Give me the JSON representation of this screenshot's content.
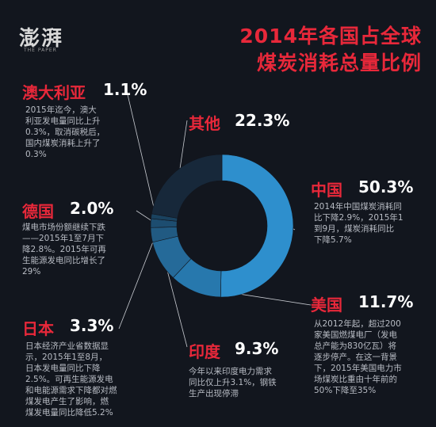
{
  "logo": {
    "text": "澎湃",
    "sub": "THE PAPER"
  },
  "title_line1": "2014年各国占全球",
  "title_line2": "煤炭消耗总量比例",
  "colors": {
    "china": "#2e8fcd",
    "usa": "#2778ad",
    "india": "#256a99",
    "japan": "#215a82",
    "germany": "#1d4d70",
    "australia": "#1a425f",
    "other": "#17283a",
    "accent": "#e8283a"
  },
  "chart_data": {
    "type": "pie",
    "donut": true,
    "title": "2014年各国占全球煤炭消耗总量比例",
    "categories": [
      "中国",
      "美国",
      "印度",
      "日本",
      "德国",
      "澳大利亚",
      "其他"
    ],
    "values": [
      50.3,
      11.7,
      9.3,
      3.3,
      2.0,
      1.1,
      22.3
    ]
  },
  "labels": {
    "china": {
      "name": "中国",
      "pct": "50.3%",
      "desc": [
        "2014年中国煤炭消耗同",
        "比下降2.9%，2015年1",
        "到9月，煤炭消耗同比",
        "下降5.7%"
      ]
    },
    "usa": {
      "name": "美国",
      "pct": "11.7%",
      "desc": [
        "从2012年起，超过200",
        "家美国燃煤电厂（发电",
        "总产能为830亿瓦）将",
        "逐步停产。在这一背景",
        "下，2015年美国电力市",
        "场煤炭比重由十年前的",
        "50%下降至35%"
      ]
    },
    "india": {
      "name": "印度",
      "pct": "9.3%",
      "desc": [
        "今年以来印度电力需求",
        "同比仅上升3.1%，钢铁",
        "生产出现停滞"
      ]
    },
    "japan": {
      "name": "日本",
      "pct": "3.3%",
      "desc": [
        "日本经济产业省数据显",
        "示，2015年1至8月，",
        "日本发电量同比下降",
        "2.5%。可再生能源发电",
        "和电能源需求下降都对燃",
        "煤发电产生了影响，燃",
        "煤发电量同比降低5.2%"
      ]
    },
    "germany": {
      "name": "德国",
      "pct": "2.0%",
      "desc": [
        "煤电市场份额继续下跌",
        "——2015年1至7月下",
        "降2.8%。2015年可再",
        "生能源发电同比增长了",
        "29%"
      ]
    },
    "australia": {
      "name": "澳大利亚",
      "pct": "1.1%",
      "desc": [
        "2015年迄今，澳大",
        "利亚发电量同比上升",
        "0.3%，取消碳税后，",
        "国内煤炭消耗上升了",
        "0.3%"
      ]
    },
    "other": {
      "name": "其他",
      "pct": "22.3%"
    }
  }
}
